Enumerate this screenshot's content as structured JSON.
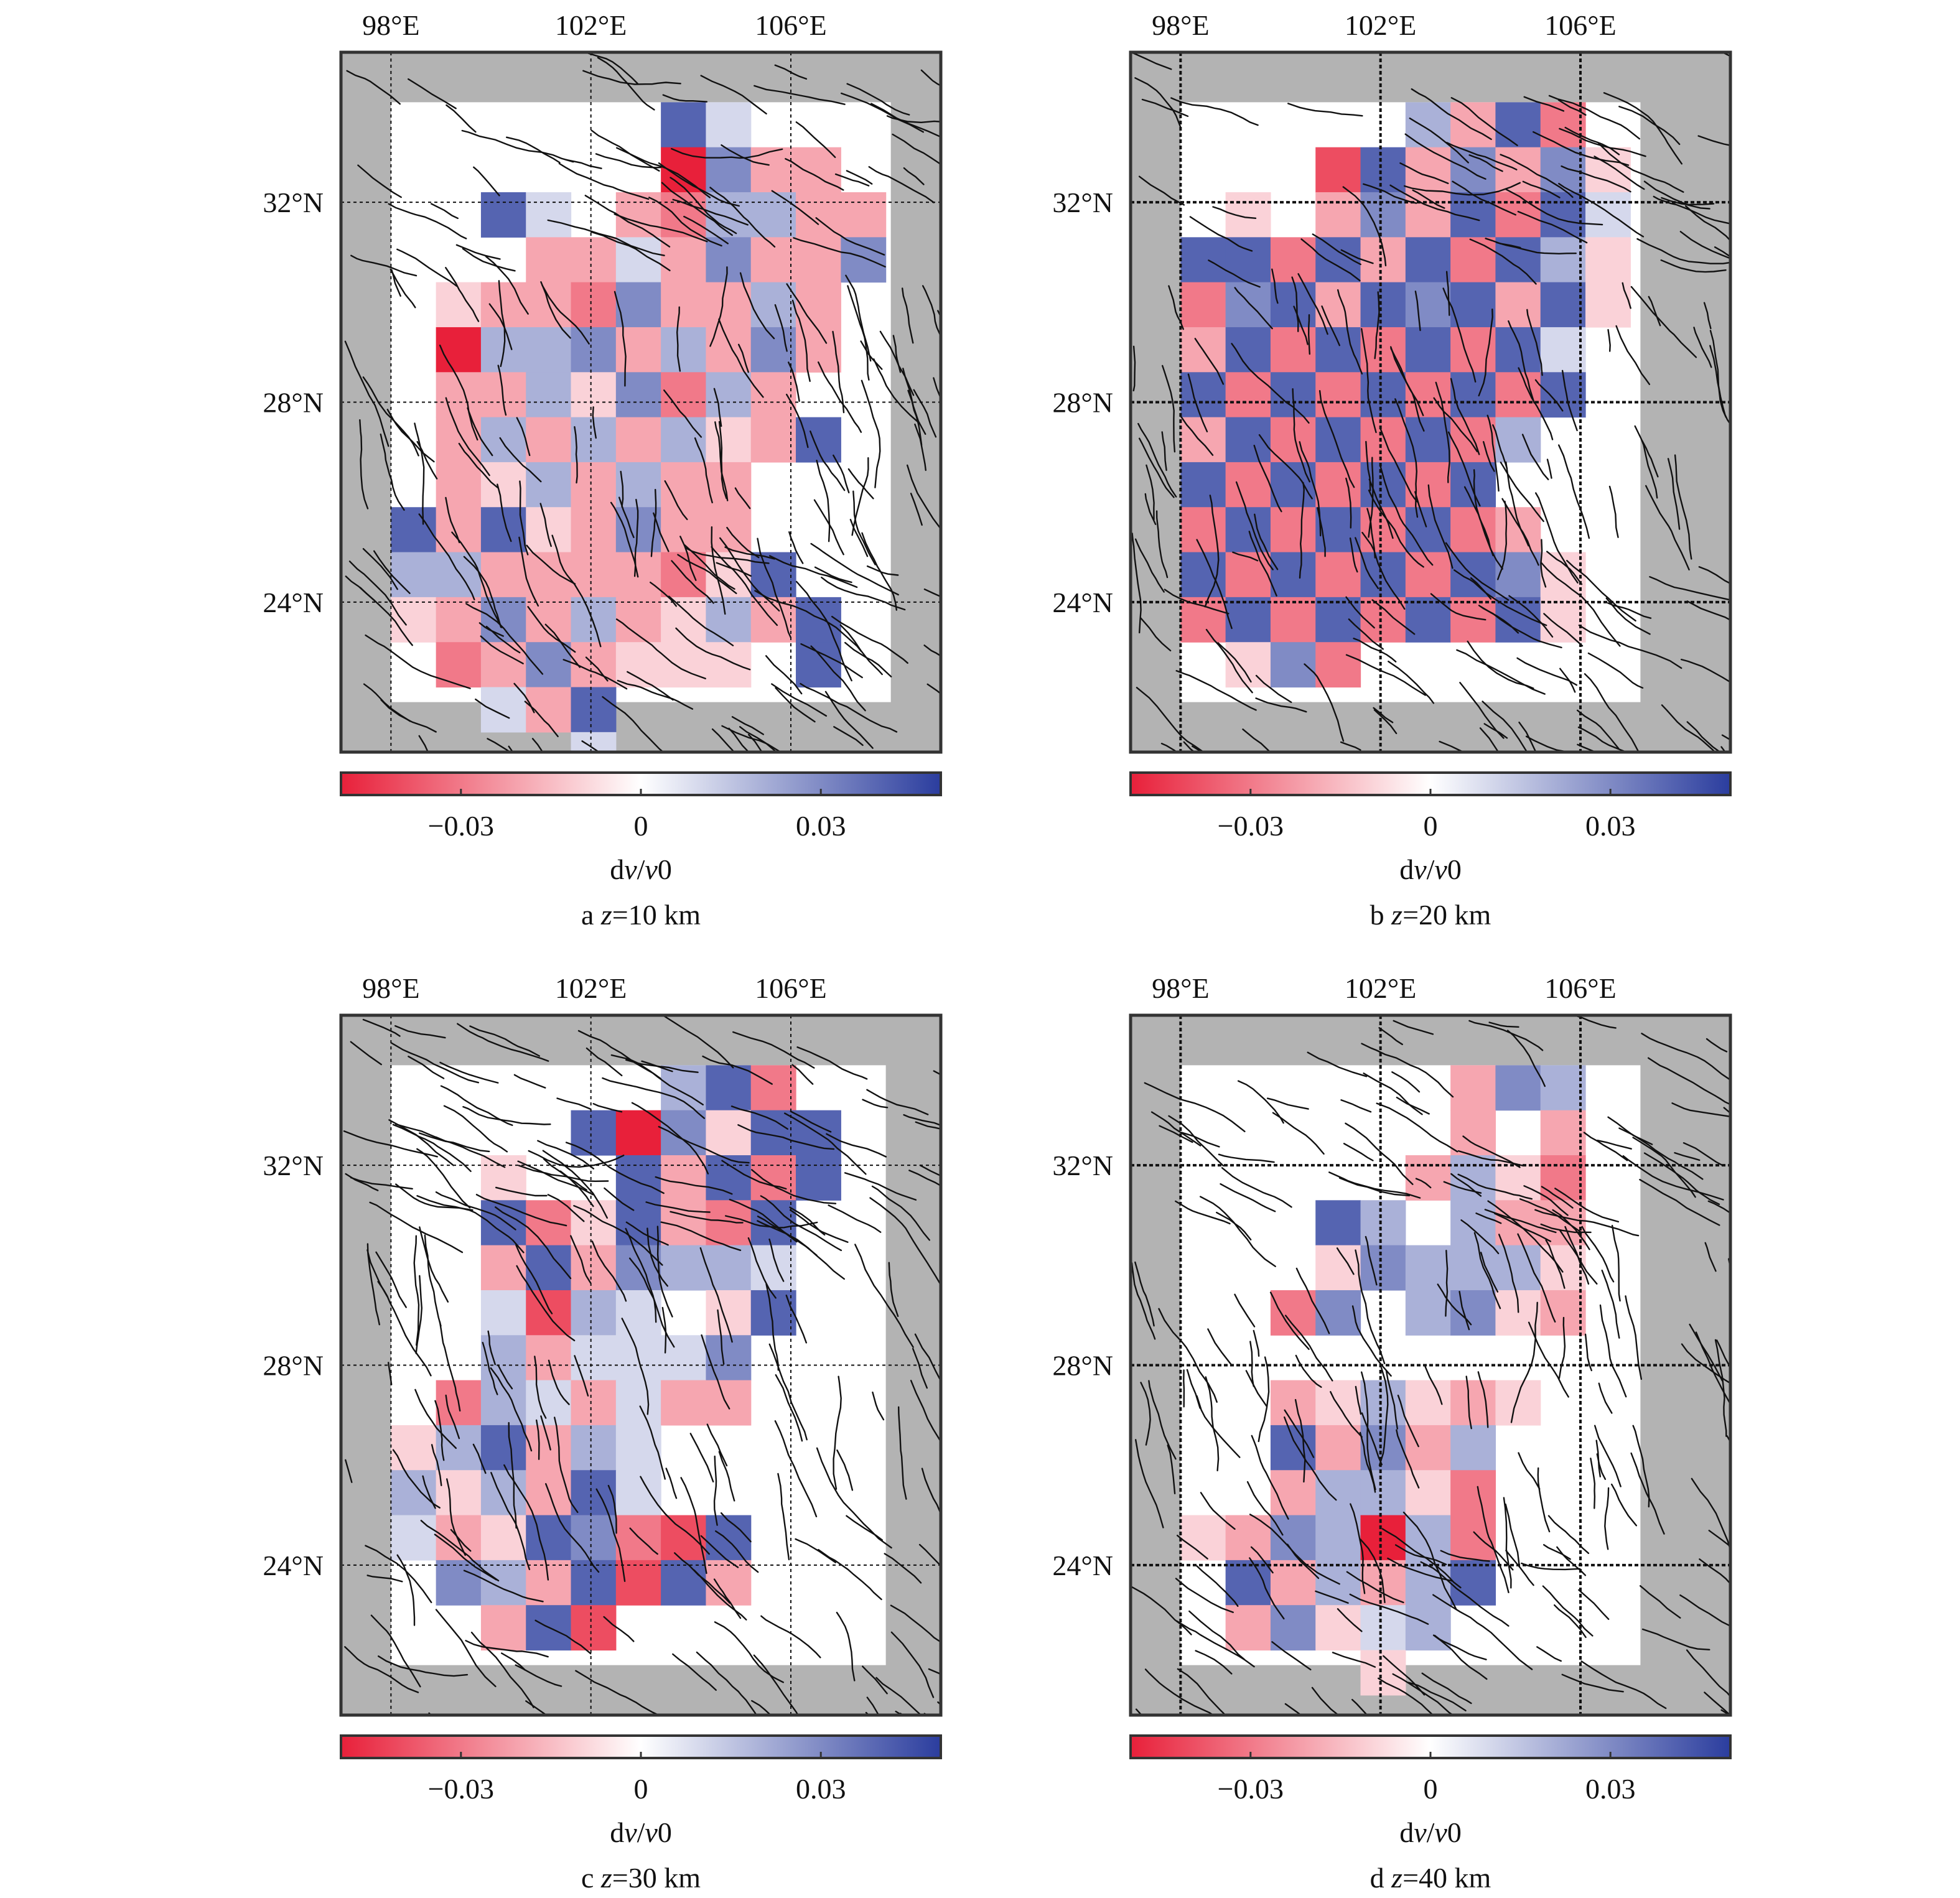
{
  "colors": {
    "negative": "#e8203a",
    "zero": "#ffffff",
    "positive": "#2b3d9e",
    "mask": "#b3b3b3",
    "fault": "#111111"
  },
  "lon_tick_labels": [
    "98°E",
    "102°E",
    "106°E"
  ],
  "lat_tick_labels": [
    "32°N",
    "28°N",
    "24°N"
  ],
  "colorbar": {
    "ticks": [
      -0.03,
      0,
      0.03
    ],
    "tick_labels": [
      "−0.03",
      "0",
      "0.03"
    ],
    "label_d": "d",
    "label_v": "v",
    "label_slash": "/",
    "label_v0": "v",
    "label_zero": "0",
    "range": [
      -0.05,
      0.05
    ]
  },
  "chart_data": [
    {
      "type": "heatmap",
      "panel_letter": "a",
      "z_var": "z",
      "depth_text": "=10 km",
      "depth_km": 10,
      "lon_range": [
        97,
        109
      ],
      "lat_range": [
        21,
        35
      ],
      "grid": true,
      "cell_size_deg": 0.9,
      "coverage_lon": [
        98,
        108
      ],
      "coverage_lat": [
        22,
        34
      ],
      "dvv_rows_north_to_south": [
        [
          null,
          null,
          null,
          null,
          null,
          null,
          0.04,
          0.01,
          null,
          null,
          null
        ],
        [
          null,
          null,
          null,
          null,
          null,
          null,
          -0.05,
          0.03,
          -0.02,
          -0.02,
          null
        ],
        [
          null,
          null,
          0.04,
          0.01,
          null,
          -0.02,
          -0.03,
          0.02,
          0.02,
          -0.02,
          -0.02
        ],
        [
          null,
          null,
          null,
          -0.02,
          -0.02,
          0.01,
          -0.02,
          0.03,
          -0.02,
          -0.02,
          0.03
        ],
        [
          null,
          -0.01,
          -0.02,
          -0.02,
          -0.03,
          0.03,
          -0.02,
          -0.02,
          0.02,
          -0.02,
          null
        ],
        [
          null,
          -0.05,
          0.02,
          0.02,
          0.03,
          -0.02,
          0.02,
          -0.02,
          0.03,
          -0.02,
          null
        ],
        [
          null,
          -0.02,
          -0.02,
          0.02,
          -0.01,
          0.03,
          -0.03,
          0.02,
          -0.02,
          null,
          null
        ],
        [
          null,
          -0.02,
          0.02,
          -0.02,
          0.02,
          -0.02,
          0.02,
          -0.01,
          -0.02,
          0.04,
          null
        ],
        [
          null,
          -0.02,
          -0.01,
          0.02,
          -0.02,
          0.02,
          -0.02,
          -0.02,
          null,
          null,
          null
        ],
        [
          0.04,
          -0.02,
          0.04,
          -0.01,
          -0.02,
          0.03,
          -0.02,
          -0.02,
          null,
          null,
          null
        ],
        [
          0.02,
          0.02,
          -0.02,
          -0.02,
          -0.02,
          -0.02,
          -0.03,
          -0.01,
          0.04,
          null,
          null
        ],
        [
          -0.01,
          -0.02,
          0.03,
          -0.02,
          0.02,
          -0.02,
          -0.01,
          0.02,
          -0.02,
          0.04,
          null
        ],
        [
          null,
          -0.03,
          -0.02,
          0.03,
          -0.02,
          -0.01,
          -0.01,
          -0.01,
          null,
          0.04,
          null
        ],
        [
          null,
          null,
          0.01,
          -0.02,
          0.04,
          null,
          null,
          null,
          null,
          null,
          null
        ],
        [
          null,
          null,
          null,
          null,
          0.01,
          null,
          null,
          null,
          null,
          null,
          null
        ]
      ]
    },
    {
      "type": "heatmap",
      "panel_letter": "b",
      "z_var": "z",
      "depth_text": "=20 km",
      "depth_km": 20,
      "lon_range": [
        97,
        109
      ],
      "lat_range": [
        21,
        35
      ],
      "grid": true,
      "cell_size_deg": 0.9,
      "coverage_lon": [
        98,
        107.2
      ],
      "coverage_lat": [
        22,
        34
      ],
      "dvv_rows_north_to_south": [
        [
          null,
          null,
          null,
          null,
          null,
          0.02,
          -0.02,
          0.04,
          -0.03,
          null
        ],
        [
          null,
          null,
          null,
          -0.04,
          0.04,
          -0.02,
          0.03,
          -0.02,
          0.03,
          -0.01
        ],
        [
          null,
          -0.01,
          null,
          -0.02,
          0.03,
          -0.02,
          0.04,
          -0.03,
          0.04,
          0.01
        ],
        [
          0.04,
          0.04,
          -0.03,
          0.04,
          -0.02,
          0.04,
          -0.03,
          0.04,
          0.02,
          -0.01
        ],
        [
          -0.03,
          0.03,
          0.04,
          -0.02,
          0.04,
          0.03,
          0.04,
          -0.02,
          0.04,
          -0.01
        ],
        [
          -0.02,
          0.04,
          -0.03,
          0.04,
          -0.03,
          0.04,
          -0.03,
          0.04,
          0.01,
          null
        ],
        [
          0.04,
          -0.03,
          0.04,
          -0.03,
          0.04,
          -0.03,
          0.04,
          -0.03,
          0.04,
          null
        ],
        [
          -0.02,
          0.04,
          -0.03,
          0.04,
          -0.03,
          0.04,
          -0.03,
          0.02,
          null,
          null
        ],
        [
          0.04,
          -0.03,
          0.04,
          -0.03,
          0.04,
          -0.03,
          0.04,
          null,
          null,
          null
        ],
        [
          -0.03,
          0.04,
          -0.03,
          0.04,
          -0.03,
          0.04,
          -0.03,
          -0.02,
          null,
          null
        ],
        [
          0.04,
          -0.03,
          0.04,
          -0.03,
          0.04,
          -0.03,
          0.04,
          0.03,
          -0.01,
          null
        ],
        [
          -0.03,
          0.04,
          -0.03,
          0.04,
          -0.03,
          0.04,
          -0.03,
          0.04,
          -0.01,
          null
        ],
        [
          null,
          -0.01,
          0.03,
          -0.03,
          null,
          null,
          null,
          null,
          null,
          null
        ]
      ]
    },
    {
      "type": "heatmap",
      "panel_letter": "c",
      "z_var": "z",
      "depth_text": "=30 km",
      "depth_km": 30,
      "lon_range": [
        97,
        109
      ],
      "lat_range": [
        21,
        35
      ],
      "grid": true,
      "cell_size_deg": 0.9,
      "coverage_lon": [
        98,
        107.9
      ],
      "coverage_lat": [
        22,
        34
      ],
      "dvv_rows_north_to_south": [
        [
          null,
          null,
          null,
          null,
          null,
          null,
          0.02,
          0.04,
          -0.03,
          null
        ],
        [
          null,
          null,
          null,
          null,
          0.04,
          -0.05,
          0.03,
          -0.01,
          0.04,
          0.04
        ],
        [
          null,
          null,
          -0.01,
          null,
          null,
          0.04,
          -0.02,
          0.04,
          -0.03,
          0.04
        ],
        [
          null,
          null,
          0.04,
          -0.03,
          -0.01,
          0.04,
          -0.02,
          -0.03,
          0.04,
          null
        ],
        [
          null,
          null,
          -0.02,
          0.04,
          -0.02,
          0.03,
          0.02,
          0.02,
          0.01,
          null
        ],
        [
          null,
          null,
          0.01,
          -0.04,
          0.02,
          0.01,
          null,
          -0.01,
          0.04,
          null
        ],
        [
          null,
          null,
          0.02,
          -0.02,
          0.01,
          0.01,
          0.01,
          0.03,
          null,
          null
        ],
        [
          null,
          -0.03,
          0.02,
          0.01,
          -0.02,
          0.01,
          -0.02,
          -0.02,
          null,
          null
        ],
        [
          -0.01,
          0.02,
          0.04,
          -0.02,
          0.02,
          0.01,
          null,
          null,
          null,
          null
        ],
        [
          0.02,
          -0.01,
          0.02,
          -0.02,
          0.04,
          0.01,
          null,
          null,
          null,
          null
        ],
        [
          0.01,
          -0.02,
          -0.01,
          0.04,
          0.03,
          -0.03,
          -0.04,
          0.04,
          null,
          null
        ],
        [
          null,
          0.03,
          0.02,
          -0.02,
          0.04,
          -0.04,
          0.04,
          -0.02,
          null,
          null
        ],
        [
          null,
          null,
          -0.02,
          0.04,
          -0.04,
          null,
          null,
          null,
          null,
          null
        ]
      ]
    },
    {
      "type": "heatmap",
      "panel_letter": "d",
      "z_var": "z",
      "depth_text": "=40 km",
      "depth_km": 40,
      "lon_range": [
        97,
        109
      ],
      "lat_range": [
        21,
        35
      ],
      "grid": true,
      "cell_size_deg": 0.9,
      "coverage_lon": [
        98,
        107.2
      ],
      "coverage_lat": [
        22,
        34
      ],
      "dvv_rows_north_to_south": [
        [
          null,
          null,
          null,
          null,
          null,
          null,
          -0.02,
          0.03,
          0.02
        ],
        [
          null,
          null,
          null,
          null,
          null,
          null,
          -0.02,
          null,
          -0.02
        ],
        [
          null,
          null,
          null,
          null,
          null,
          -0.02,
          0.02,
          -0.01,
          -0.03
        ],
        [
          null,
          null,
          null,
          0.04,
          0.02,
          null,
          0.02,
          -0.02,
          -0.02
        ],
        [
          null,
          null,
          null,
          -0.01,
          0.03,
          0.02,
          0.02,
          0.02,
          -0.01
        ],
        [
          null,
          null,
          -0.03,
          0.03,
          null,
          0.02,
          0.03,
          -0.01,
          -0.02
        ],
        [
          null,
          null,
          null,
          null,
          null,
          null,
          null,
          null,
          null
        ],
        [
          null,
          null,
          -0.02,
          -0.01,
          0.02,
          -0.01,
          -0.02,
          -0.01,
          null
        ],
        [
          null,
          null,
          0.04,
          -0.02,
          0.03,
          -0.02,
          0.02,
          null,
          null
        ],
        [
          null,
          null,
          -0.02,
          0.02,
          0.02,
          -0.01,
          -0.03,
          null,
          null
        ],
        [
          -0.01,
          -0.02,
          0.03,
          0.02,
          -0.05,
          0.02,
          -0.03,
          null,
          null
        ],
        [
          null,
          0.04,
          -0.02,
          0.02,
          -0.02,
          0.02,
          0.04,
          null,
          null
        ],
        [
          null,
          -0.02,
          0.03,
          -0.01,
          0.01,
          0.02,
          null,
          null,
          null
        ],
        [
          null,
          null,
          null,
          null,
          -0.01,
          null,
          null,
          null,
          null
        ]
      ]
    }
  ]
}
